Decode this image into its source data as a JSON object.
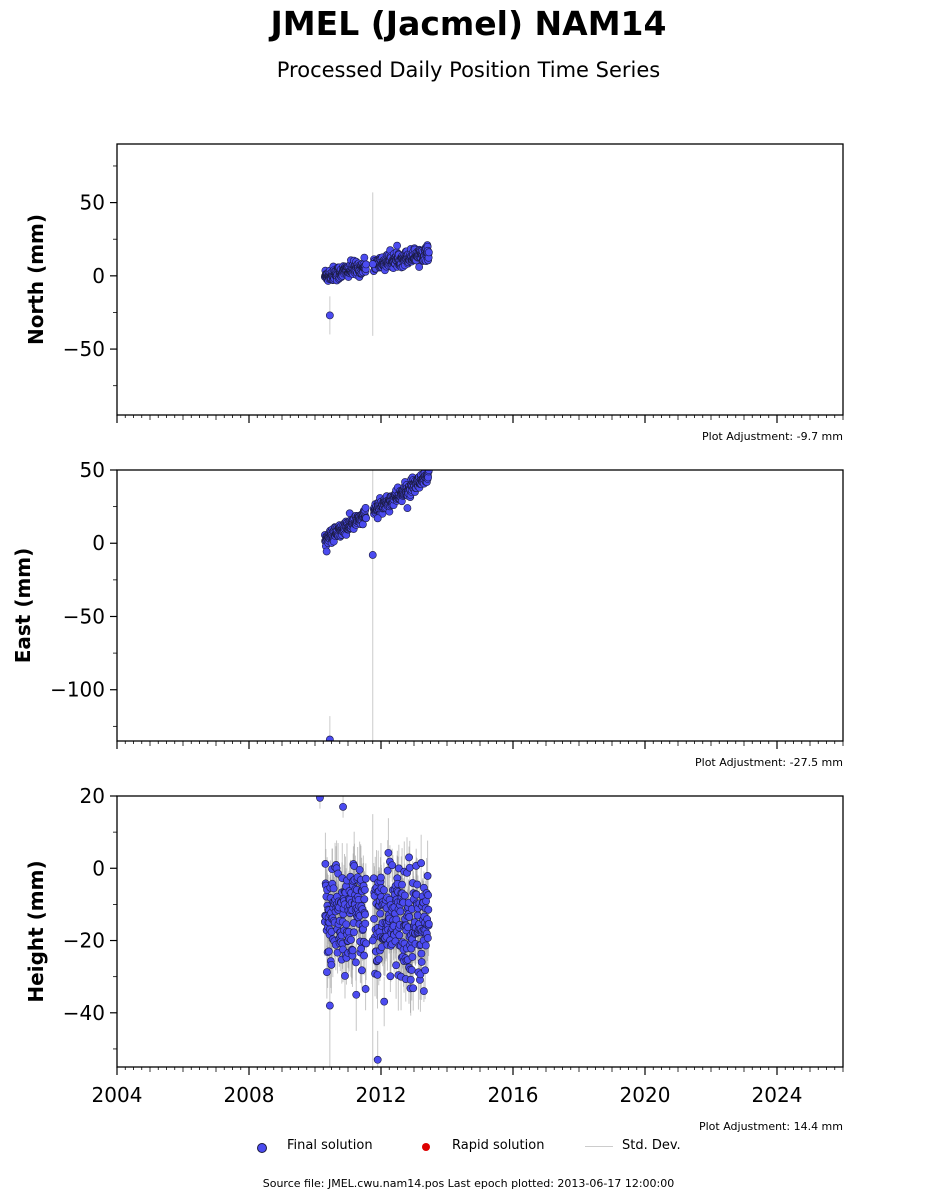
{
  "title": "JMEL (Jacmel) NAM14",
  "subtitle": "Processed Daily Position Time Series",
  "footer": "Source file: JMEL.cwu.nam14.pos  Last epoch plotted: 2013-06-17 12:00:00",
  "legend": {
    "final": "Final solution",
    "rapid": "Rapid solution",
    "std": "Std. Dev."
  },
  "colors": {
    "final": "#4b4bf0",
    "rapid": "#dd0000",
    "std": "#cccccc",
    "marker_edge": "#1a1a40"
  },
  "chart_data": [
    {
      "type": "scatter",
      "ylabel": "North (mm)",
      "xlim": [
        2004,
        2026
      ],
      "ylim": [
        -95,
        90
      ],
      "yticks": [
        50,
        0,
        -50
      ],
      "ytick_labels": [
        "50",
        "0",
        "−50"
      ],
      "xticks": [
        2004,
        2008,
        2012,
        2016,
        2020,
        2024
      ],
      "adjustment": "Plot Adjustment: -9.7 mm",
      "trend": {
        "start": [
          2010.3,
          0
        ],
        "end": [
          2013.45,
          16
        ],
        "scatter": 2.5,
        "sigma": 1.5
      },
      "outliers": [
        {
          "x": 2010.45,
          "y": -27,
          "sigma": 13
        },
        {
          "x": 2011.75,
          "y": 8,
          "sigma": 49
        }
      ]
    },
    {
      "type": "scatter",
      "ylabel": "East (mm)",
      "xlim": [
        2004,
        2026
      ],
      "ylim": [
        -135,
        50
      ],
      "yticks": [
        50,
        0,
        -50,
        -100
      ],
      "ytick_labels": [
        "50",
        "0",
        "−50",
        "−100"
      ],
      "xticks": [
        2004,
        2008,
        2012,
        2016,
        2020,
        2024
      ],
      "adjustment": "Plot Adjustment: -27.5 mm",
      "trend": {
        "start": [
          2010.3,
          2
        ],
        "end": [
          2013.45,
          45
        ],
        "scatter": 2.5,
        "sigma": 1.5
      },
      "outliers": [
        {
          "x": 2010.45,
          "y": -134,
          "sigma": 16
        },
        {
          "x": 2011.75,
          "y": -8,
          "sigma": 140
        },
        {
          "x": 2011.9,
          "y": 17,
          "sigma": 2
        },
        {
          "x": 2012.8,
          "y": 24,
          "sigma": 2
        }
      ]
    },
    {
      "type": "scatter",
      "ylabel": "Height (mm)",
      "xlim": [
        2004,
        2026
      ],
      "ylim": [
        -55,
        20
      ],
      "yticks": [
        20,
        0,
        -20,
        -40
      ],
      "ytick_labels": [
        "20",
        "0",
        "−20",
        "−40"
      ],
      "xticks": [
        2004,
        2008,
        2012,
        2016,
        2020,
        2024
      ],
      "xtick_labels": [
        "2004",
        "2008",
        "2012",
        "2016",
        "2020",
        "2024"
      ],
      "adjustment": "Plot Adjustment: 14.4 mm",
      "trend": {
        "start": [
          2010.3,
          -12
        ],
        "end": [
          2013.45,
          -16
        ],
        "scatter": 8,
        "sigma": 7
      },
      "outliers": [
        {
          "x": 2010.15,
          "y": 19.5,
          "sigma": 3
        },
        {
          "x": 2010.45,
          "y": -38,
          "sigma": 25
        },
        {
          "x": 2010.85,
          "y": 17,
          "sigma": 3
        },
        {
          "x": 2011.25,
          "y": -35,
          "sigma": 10
        },
        {
          "x": 2011.75,
          "y": -20,
          "sigma": 35
        },
        {
          "x": 2011.9,
          "y": -53,
          "sigma": 8
        },
        {
          "x": 2012.85,
          "y": 3,
          "sigma": 3
        },
        {
          "x": 2013.3,
          "y": -34,
          "sigma": 3
        }
      ]
    }
  ]
}
